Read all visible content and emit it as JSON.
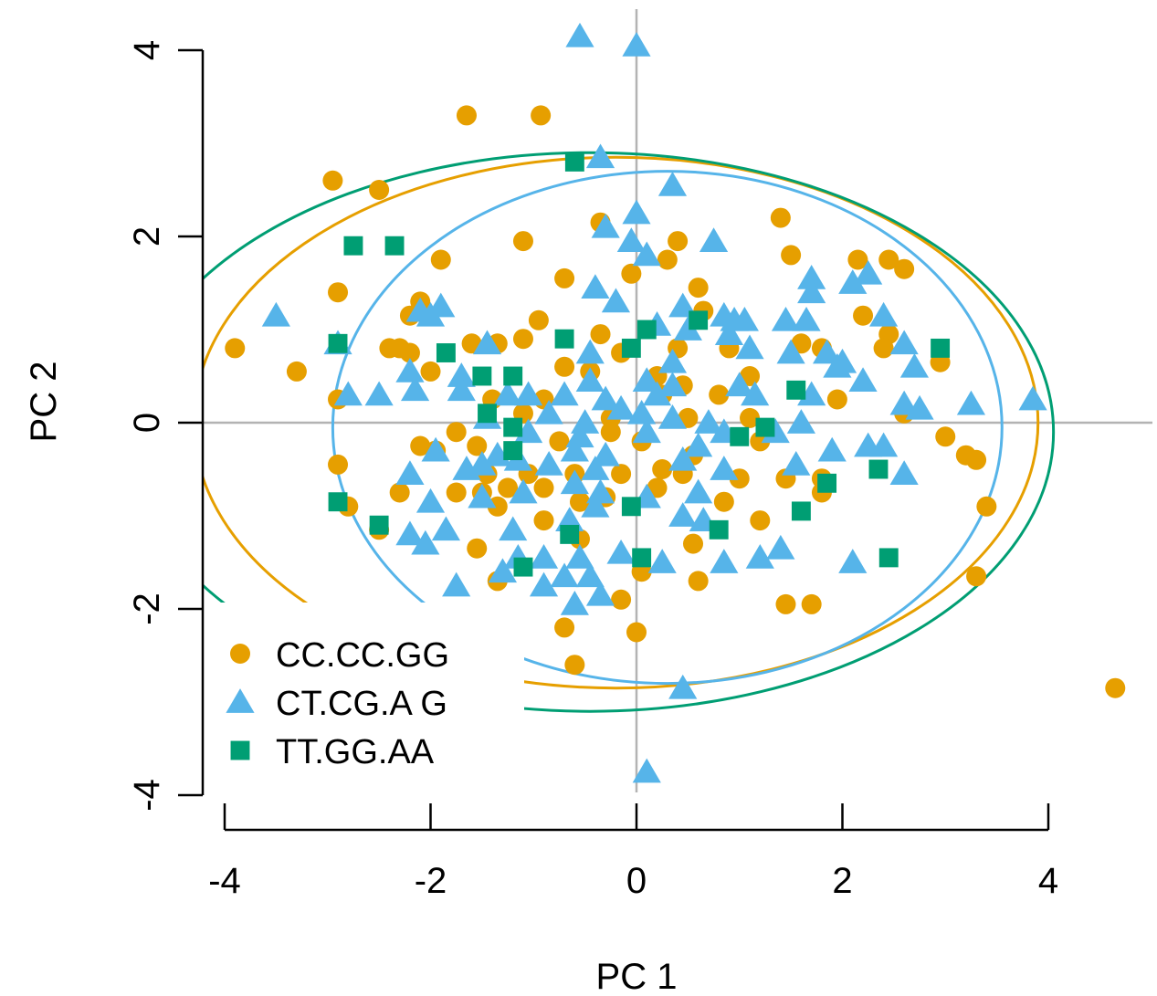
{
  "chart_data": {
    "type": "scatter",
    "title": "",
    "xlabel": "PC 1",
    "ylabel": "PC 2",
    "xlim": [
      -4,
      4
    ],
    "ylim": [
      -4,
      4
    ],
    "x_ticks": [
      -4,
      -2,
      0,
      2,
      4
    ],
    "y_ticks": [
      -4,
      -2,
      0,
      2,
      4
    ],
    "x_tick_labels": [
      "-4",
      "-2",
      "0",
      "2",
      "4"
    ],
    "y_tick_labels": [
      "-4",
      "-2",
      "0",
      "2",
      "4"
    ],
    "reference_lines": {
      "x": 0,
      "y": 0
    },
    "legend_position": "bottom-left",
    "series": [
      {
        "name": "CC.CC.GG",
        "marker": "circle",
        "color": "#E69F00",
        "ellipse": {
          "cx": -0.2,
          "cy": 0.0,
          "rx": 4.1,
          "ry": 2.85
        },
        "points": [
          [
            -1.65,
            3.3
          ],
          [
            -0.93,
            3.3
          ],
          [
            -2.95,
            2.6
          ],
          [
            -2.5,
            2.5
          ],
          [
            -0.35,
            2.15
          ],
          [
            -1.1,
            1.95
          ],
          [
            0.4,
            1.95
          ],
          [
            1.4,
            2.2
          ],
          [
            1.5,
            1.8
          ],
          [
            2.15,
            1.75
          ],
          [
            2.45,
            1.75
          ],
          [
            2.6,
            1.65
          ],
          [
            -1.9,
            1.75
          ],
          [
            -0.7,
            1.55
          ],
          [
            -0.05,
            1.6
          ],
          [
            0.3,
            1.75
          ],
          [
            0.6,
            1.45
          ],
          [
            -2.9,
            1.4
          ],
          [
            -2.1,
            1.3
          ],
          [
            -2.2,
            1.15
          ],
          [
            -0.95,
            1.1
          ],
          [
            0.65,
            1.2
          ],
          [
            2.2,
            1.15
          ],
          [
            2.45,
            0.95
          ],
          [
            -3.9,
            0.8
          ],
          [
            -2.4,
            0.8
          ],
          [
            -2.3,
            0.8
          ],
          [
            -2.2,
            0.75
          ],
          [
            -1.6,
            0.85
          ],
          [
            -1.35,
            0.85
          ],
          [
            -1.1,
            0.9
          ],
          [
            -0.35,
            0.95
          ],
          [
            -0.15,
            0.75
          ],
          [
            0.4,
            0.8
          ],
          [
            0.9,
            0.8
          ],
          [
            1.6,
            0.85
          ],
          [
            1.8,
            0.8
          ],
          [
            2.4,
            0.8
          ],
          [
            2.95,
            0.65
          ],
          [
            -3.3,
            0.55
          ],
          [
            -2.0,
            0.55
          ],
          [
            -0.45,
            0.55
          ],
          [
            -0.7,
            0.6
          ],
          [
            0.2,
            0.5
          ],
          [
            0.45,
            0.4
          ],
          [
            1.1,
            0.5
          ],
          [
            -2.9,
            0.25
          ],
          [
            -1.4,
            0.25
          ],
          [
            -0.9,
            0.25
          ],
          [
            0.25,
            0.3
          ],
          [
            0.8,
            0.3
          ],
          [
            1.95,
            0.25
          ],
          [
            -1.1,
            0.1
          ],
          [
            -0.25,
            0.05
          ],
          [
            0.5,
            0.05
          ],
          [
            1.1,
            0.05
          ],
          [
            2.6,
            0.1
          ],
          [
            -2.1,
            -0.25
          ],
          [
            -1.95,
            -0.3
          ],
          [
            -1.75,
            -0.1
          ],
          [
            -1.55,
            -0.25
          ],
          [
            -0.75,
            -0.2
          ],
          [
            -0.25,
            -0.1
          ],
          [
            0.05,
            -0.2
          ],
          [
            0.55,
            -0.35
          ],
          [
            1.2,
            -0.2
          ],
          [
            3.0,
            -0.15
          ],
          [
            3.2,
            -0.35
          ],
          [
            3.3,
            -0.4
          ],
          [
            -2.9,
            -0.45
          ],
          [
            -1.45,
            -0.55
          ],
          [
            -1.05,
            -0.55
          ],
          [
            -0.6,
            -0.55
          ],
          [
            -0.15,
            -0.55
          ],
          [
            0.25,
            -0.5
          ],
          [
            1.45,
            -0.6
          ],
          [
            1.8,
            -0.6
          ],
          [
            -2.3,
            -0.75
          ],
          [
            -1.75,
            -0.75
          ],
          [
            -1.5,
            -0.75
          ],
          [
            -1.25,
            -0.7
          ],
          [
            -0.9,
            -0.7
          ],
          [
            -0.3,
            -0.8
          ],
          [
            0.2,
            -0.7
          ],
          [
            0.45,
            -0.55
          ],
          [
            1.0,
            -0.6
          ],
          [
            1.8,
            -0.75
          ],
          [
            -2.8,
            -0.9
          ],
          [
            -1.35,
            -0.9
          ],
          [
            -0.55,
            -0.85
          ],
          [
            0.85,
            -0.85
          ],
          [
            -2.5,
            -1.15
          ],
          [
            -0.9,
            -1.05
          ],
          [
            1.2,
            -1.05
          ],
          [
            -1.55,
            -1.35
          ],
          [
            -0.55,
            -1.25
          ],
          [
            0.55,
            -1.3
          ],
          [
            -1.35,
            -1.7
          ],
          [
            -0.15,
            -1.9
          ],
          [
            0.05,
            -1.6
          ],
          [
            0.6,
            -1.7
          ],
          [
            1.45,
            -1.95
          ],
          [
            1.7,
            -1.95
          ],
          [
            3.3,
            -1.65
          ],
          [
            3.4,
            -0.9
          ],
          [
            -0.7,
            -2.2
          ],
          [
            0.0,
            -2.25
          ],
          [
            -0.6,
            -2.6
          ],
          [
            4.65,
            -2.85
          ]
        ]
      },
      {
        "name": "CT.CG.A  G",
        "marker": "triangle",
        "color": "#56B4E9",
        "ellipse": {
          "cx": 0.3,
          "cy": -0.05,
          "rx": 3.25,
          "ry": 2.75
        },
        "points": [
          [
            -0.55,
            4.15
          ],
          [
            0.0,
            4.05
          ],
          [
            -0.35,
            2.85
          ],
          [
            0.35,
            2.55
          ],
          [
            0.0,
            2.25
          ],
          [
            -0.3,
            2.1
          ],
          [
            -0.05,
            1.95
          ],
          [
            0.75,
            1.95
          ],
          [
            1.7,
            1.55
          ],
          [
            2.25,
            1.6
          ],
          [
            1.7,
            1.4
          ],
          [
            2.1,
            1.5
          ],
          [
            -0.4,
            1.45
          ],
          [
            -0.2,
            1.3
          ],
          [
            0.45,
            1.25
          ],
          [
            0.1,
            1.8
          ],
          [
            -3.5,
            1.15
          ],
          [
            -2.1,
            1.2
          ],
          [
            -1.9,
            1.25
          ],
          [
            -2.0,
            1.15
          ],
          [
            0.2,
            1.05
          ],
          [
            0.85,
            1.15
          ],
          [
            0.95,
            1.1
          ],
          [
            1.05,
            1.1
          ],
          [
            1.45,
            1.1
          ],
          [
            1.65,
            1.1
          ],
          [
            2.4,
            1.15
          ],
          [
            -2.9,
            0.85
          ],
          [
            -1.45,
            0.85
          ],
          [
            -0.45,
            0.75
          ],
          [
            0.35,
            0.65
          ],
          [
            0.5,
            1.0
          ],
          [
            0.9,
            0.95
          ],
          [
            1.1,
            0.8
          ],
          [
            1.5,
            0.75
          ],
          [
            1.85,
            0.75
          ],
          [
            2.6,
            0.85
          ],
          [
            1.95,
            0.6
          ],
          [
            2.0,
            0.65
          ],
          [
            2.7,
            0.6
          ],
          [
            -2.2,
            0.55
          ],
          [
            -1.7,
            0.5
          ],
          [
            -0.45,
            0.45
          ],
          [
            0.1,
            0.45
          ],
          [
            0.35,
            0.4
          ],
          [
            1.0,
            0.4
          ],
          [
            2.2,
            0.45
          ],
          [
            3.85,
            0.25
          ],
          [
            -2.8,
            0.3
          ],
          [
            -2.5,
            0.3
          ],
          [
            -2.15,
            0.35
          ],
          [
            -1.7,
            0.35
          ],
          [
            -1.25,
            0.3
          ],
          [
            -1.05,
            0.3
          ],
          [
            -0.7,
            0.3
          ],
          [
            -0.3,
            0.25
          ],
          [
            0.2,
            0.3
          ],
          [
            1.15,
            0.3
          ],
          [
            1.7,
            0.3
          ],
          [
            2.6,
            0.2
          ],
          [
            2.75,
            0.15
          ],
          [
            3.25,
            0.2
          ],
          [
            -1.45,
            0.05
          ],
          [
            -0.85,
            0.1
          ],
          [
            -0.5,
            0.0
          ],
          [
            -0.15,
            0.15
          ],
          [
            0.05,
            0.1
          ],
          [
            0.35,
            0.05
          ],
          [
            0.7,
            0.0
          ],
          [
            1.6,
            0.0
          ],
          [
            -1.05,
            -0.1
          ],
          [
            -0.55,
            -0.15
          ],
          [
            0.1,
            -0.1
          ],
          [
            0.85,
            -0.1
          ],
          [
            1.35,
            -0.1
          ],
          [
            2.25,
            -0.25
          ],
          [
            2.4,
            -0.25
          ],
          [
            -1.95,
            -0.3
          ],
          [
            -1.35,
            -0.35
          ],
          [
            -0.6,
            -0.3
          ],
          [
            -0.3,
            -0.35
          ],
          [
            0.6,
            -0.25
          ],
          [
            1.9,
            -0.3
          ],
          [
            -2.2,
            -0.55
          ],
          [
            -1.65,
            -0.5
          ],
          [
            -1.5,
            -0.45
          ],
          [
            -1.15,
            -0.4
          ],
          [
            -0.85,
            -0.45
          ],
          [
            -0.4,
            -0.5
          ],
          [
            0.45,
            -0.4
          ],
          [
            0.85,
            -0.5
          ],
          [
            1.55,
            -0.45
          ],
          [
            2.6,
            -0.55
          ],
          [
            -2.0,
            -0.85
          ],
          [
            -1.5,
            -0.8
          ],
          [
            -1.1,
            -0.75
          ],
          [
            -0.6,
            -0.65
          ],
          [
            -0.35,
            -0.75
          ],
          [
            0.1,
            -0.8
          ],
          [
            0.6,
            -0.75
          ],
          [
            -1.85,
            -1.15
          ],
          [
            -2.2,
            -1.2
          ],
          [
            -2.05,
            -1.3
          ],
          [
            -1.2,
            -1.15
          ],
          [
            -0.65,
            -1.05
          ],
          [
            -0.4,
            -0.9
          ],
          [
            0.45,
            -1.0
          ],
          [
            0.65,
            -1.05
          ],
          [
            -1.15,
            -1.45
          ],
          [
            -0.9,
            -1.45
          ],
          [
            -0.55,
            -1.45
          ],
          [
            -0.15,
            -1.4
          ],
          [
            0.25,
            -1.5
          ],
          [
            0.85,
            -1.5
          ],
          [
            1.2,
            -1.45
          ],
          [
            1.4,
            -1.35
          ],
          [
            2.1,
            -1.5
          ],
          [
            -1.3,
            -1.6
          ],
          [
            -0.9,
            -1.75
          ],
          [
            -0.7,
            -1.65
          ],
          [
            -0.45,
            -1.65
          ],
          [
            -1.75,
            -1.75
          ],
          [
            -0.6,
            -1.95
          ],
          [
            -0.35,
            -1.85
          ],
          [
            0.45,
            -2.85
          ],
          [
            0.1,
            -3.75
          ]
        ]
      },
      {
        "name": "TT.GG.AA",
        "marker": "square",
        "color": "#009E73",
        "ellipse": {
          "cx": -0.45,
          "cy": -0.1,
          "rx": 4.5,
          "ry": 3.0
        },
        "points": [
          [
            -0.6,
            2.8
          ],
          [
            -2.75,
            1.9
          ],
          [
            -2.35,
            1.9
          ],
          [
            0.1,
            1.0
          ],
          [
            0.6,
            1.1
          ],
          [
            -0.7,
            0.9
          ],
          [
            -2.9,
            0.85
          ],
          [
            -1.85,
            0.75
          ],
          [
            -0.05,
            0.8
          ],
          [
            2.95,
            0.8
          ],
          [
            -1.5,
            0.5
          ],
          [
            -1.2,
            0.5
          ],
          [
            1.55,
            0.35
          ],
          [
            -1.45,
            0.1
          ],
          [
            -1.2,
            -0.05
          ],
          [
            1.25,
            -0.05
          ],
          [
            1.0,
            -0.15
          ],
          [
            -1.2,
            -0.3
          ],
          [
            2.35,
            -0.5
          ],
          [
            1.85,
            -0.65
          ],
          [
            -0.05,
            -0.9
          ],
          [
            1.6,
            -0.95
          ],
          [
            -2.9,
            -0.85
          ],
          [
            -2.5,
            -1.1
          ],
          [
            -0.65,
            -1.2
          ],
          [
            0.8,
            -1.15
          ],
          [
            -1.1,
            -1.55
          ],
          [
            0.05,
            -1.45
          ],
          [
            2.45,
            -1.45
          ]
        ]
      }
    ]
  }
}
